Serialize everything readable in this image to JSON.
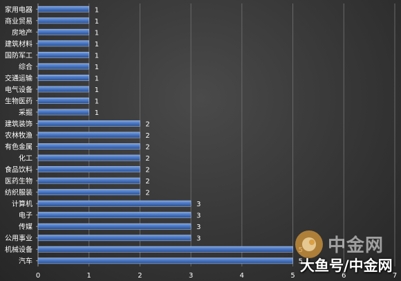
{
  "chart_data": {
    "type": "bar",
    "orientation": "horizontal",
    "categories": [
      "家用电器",
      "商业贸易",
      "房地产",
      "建筑材料",
      "国防军工",
      "综合",
      "交通运输",
      "电气设备",
      "生物医药",
      "采掘",
      "建筑装饰",
      "农林牧渔",
      "有色金属",
      "化工",
      "食品饮料",
      "医药生物",
      "纺织服装",
      "计算机",
      "电子",
      "传媒",
      "公用事业",
      "机械设备",
      "汽车"
    ],
    "values": [
      1,
      1,
      1,
      1,
      1,
      1,
      1,
      1,
      1,
      1,
      2,
      2,
      2,
      2,
      2,
      2,
      2,
      3,
      3,
      3,
      3,
      5,
      5
    ],
    "xlim": [
      0,
      7
    ],
    "xticks": [
      "0",
      "1",
      "2",
      "3",
      "4",
      "5",
      "6",
      "7"
    ],
    "grid": "vertical",
    "title": "",
    "xlabel": "",
    "ylabel": "",
    "bar_color": "#4472C4",
    "data_labels": true
  },
  "watermark": {
    "brand": "中金网",
    "caption": "大鱼号/中金网"
  },
  "colors": {
    "background": "#3a3a3a",
    "text": "#ffffff",
    "gridline": "#6a6a6a",
    "watermark_logo": "#e0a44a"
  }
}
